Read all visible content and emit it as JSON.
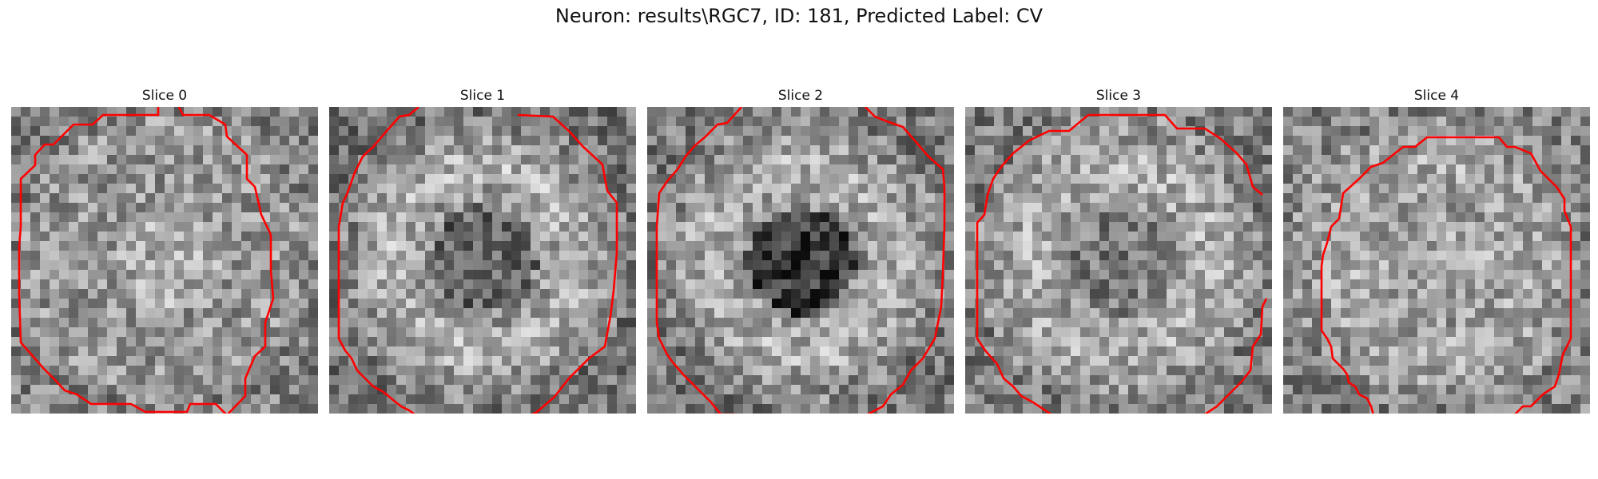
{
  "figure": {
    "title": "Neuron: results\\RGC7, ID: 181, Predicted Label: CV"
  },
  "panels": [
    {
      "label": "Slice 0"
    },
    {
      "label": "Slice 1"
    },
    {
      "label": "Slice 2"
    },
    {
      "label": "Slice 3"
    },
    {
      "label": "Slice 4"
    }
  ],
  "colors": {
    "contour": "#ff0000",
    "background": "#ffffff"
  }
}
